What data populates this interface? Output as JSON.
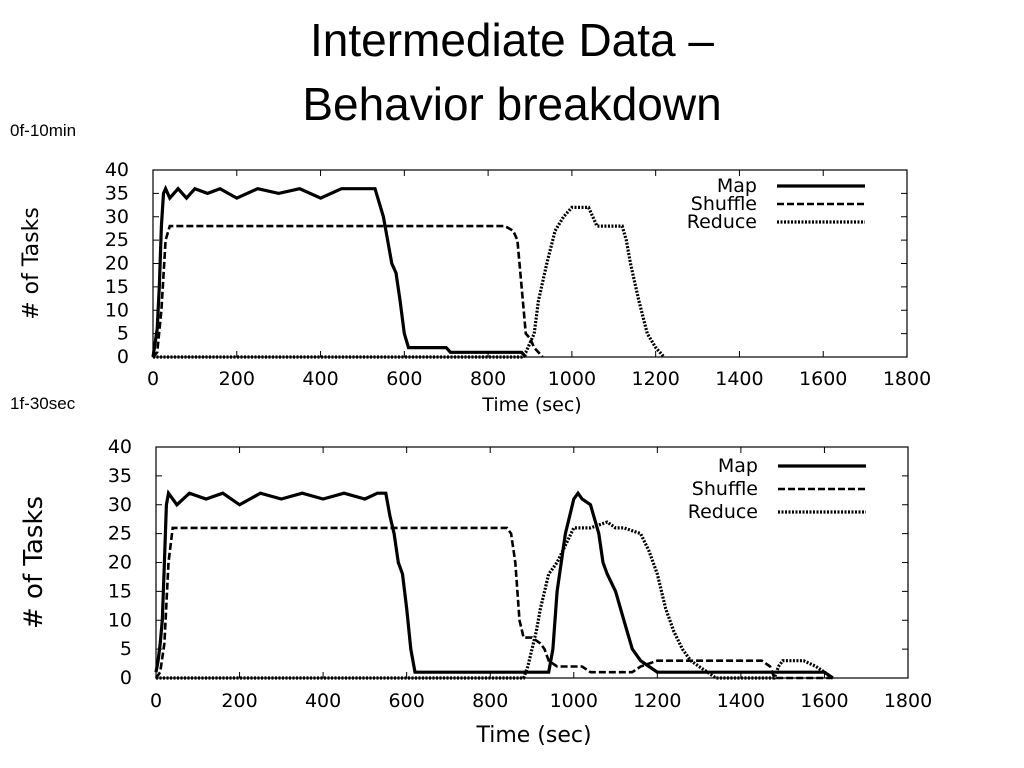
{
  "slide": {
    "title_line1": "Intermediate Data –",
    "title_line2": "Behavior breakdown"
  },
  "chart_data": [
    {
      "type": "line",
      "label": "0f-10min",
      "xlabel": "Time (sec)",
      "ylabel": "# of Tasks",
      "xlim": [
        0,
        1800
      ],
      "ylim": [
        0,
        40
      ],
      "xticks": [
        0,
        200,
        400,
        600,
        800,
        1000,
        1200,
        1400,
        1600,
        1800
      ],
      "yticks": [
        0,
        5,
        10,
        15,
        20,
        25,
        30,
        35,
        40
      ],
      "grid": false,
      "legend": "top-right",
      "series": [
        {
          "name": "Map",
          "style": "solid",
          "x": [
            0,
            5,
            10,
            15,
            20,
            25,
            30,
            40,
            60,
            80,
            100,
            130,
            160,
            200,
            250,
            300,
            350,
            400,
            450,
            500,
            530,
            540,
            550,
            560,
            570,
            580,
            590,
            600,
            610,
            700,
            710,
            800,
            850,
            880,
            890
          ],
          "y": [
            0,
            3,
            6,
            15,
            28,
            35,
            36,
            34,
            36,
            34,
            36,
            35,
            36,
            34,
            36,
            35,
            36,
            34,
            36,
            36,
            36,
            33,
            30,
            25,
            20,
            18,
            12,
            5,
            2,
            2,
            1,
            1,
            1,
            1,
            0
          ]
        },
        {
          "name": "Shuffle",
          "style": "dashed",
          "x": [
            0,
            10,
            20,
            30,
            40,
            100,
            300,
            500,
            700,
            840,
            860,
            870,
            880,
            890,
            900,
            910,
            920,
            930
          ],
          "y": [
            0,
            1,
            10,
            25,
            28,
            28,
            28,
            28,
            28,
            28,
            27,
            25,
            15,
            5,
            4,
            2,
            1,
            0
          ]
        },
        {
          "name": "Reduce",
          "style": "dotted",
          "x": [
            0,
            880,
            890,
            900,
            910,
            920,
            940,
            960,
            980,
            1000,
            1020,
            1040,
            1050,
            1060,
            1080,
            1100,
            1120,
            1130,
            1140,
            1160,
            1180,
            1200,
            1210,
            1220
          ],
          "y": [
            0,
            0,
            1,
            3,
            5,
            12,
            20,
            27,
            30,
            32,
            32,
            32,
            30,
            28,
            28,
            28,
            28,
            25,
            20,
            12,
            5,
            2,
            1,
            0
          ]
        }
      ]
    },
    {
      "type": "line",
      "label": "1f-30sec",
      "xlabel": "Time (sec)",
      "ylabel": "# of Tasks",
      "xlim": [
        0,
        1800
      ],
      "ylim": [
        0,
        40
      ],
      "xticks": [
        0,
        200,
        400,
        600,
        800,
        1000,
        1200,
        1400,
        1600,
        1800
      ],
      "yticks": [
        0,
        5,
        10,
        15,
        20,
        25,
        30,
        35,
        40
      ],
      "grid": false,
      "legend": "top-right",
      "series": [
        {
          "name": "Map",
          "style": "solid",
          "x": [
            0,
            5,
            10,
            15,
            20,
            25,
            30,
            50,
            80,
            120,
            160,
            200,
            250,
            300,
            350,
            400,
            450,
            500,
            530,
            550,
            560,
            570,
            580,
            590,
            600,
            610,
            620,
            700,
            800,
            900,
            930,
            940,
            950,
            960,
            980,
            1000,
            1010,
            1020,
            1040,
            1060,
            1070,
            1080,
            1100,
            1120,
            1140,
            1160,
            1180,
            1200,
            1300,
            1500,
            1600,
            1620
          ],
          "y": [
            1,
            3,
            6,
            10,
            20,
            30,
            32,
            30,
            32,
            31,
            32,
            30,
            32,
            31,
            32,
            31,
            32,
            31,
            32,
            32,
            28,
            25,
            20,
            18,
            12,
            5,
            1,
            1,
            1,
            1,
            1,
            1,
            5,
            15,
            25,
            31,
            32,
            31,
            30,
            25,
            20,
            18,
            15,
            10,
            5,
            3,
            2,
            1,
            1,
            1,
            1,
            0
          ]
        },
        {
          "name": "Shuffle",
          "style": "dashed",
          "x": [
            0,
            10,
            20,
            30,
            40,
            60,
            200,
            400,
            600,
            800,
            840,
            850,
            860,
            870,
            880,
            900,
            920,
            930,
            940,
            960,
            1000,
            1020,
            1040,
            1060,
            1100,
            1140,
            1160,
            1200,
            1300,
            1400,
            1450,
            1470,
            1480,
            1500,
            1600,
            1620
          ],
          "y": [
            0,
            1,
            6,
            20,
            26,
            26,
            26,
            26,
            26,
            26,
            26,
            25,
            20,
            10,
            7,
            7,
            6,
            5,
            3,
            2,
            2,
            2,
            1,
            1,
            1,
            1,
            2,
            3,
            3,
            3,
            3,
            2,
            0,
            0,
            0,
            0
          ]
        },
        {
          "name": "Reduce",
          "style": "dotted",
          "x": [
            0,
            880,
            890,
            900,
            910,
            920,
            940,
            960,
            980,
            1000,
            1040,
            1080,
            1100,
            1120,
            1160,
            1180,
            1200,
            1220,
            1240,
            1260,
            1280,
            1300,
            1320,
            1340,
            1400,
            1480,
            1490,
            1500,
            1550,
            1580,
            1600,
            1620
          ],
          "y": [
            0,
            0,
            2,
            5,
            8,
            12,
            18,
            20,
            23,
            26,
            26,
            27,
            26,
            26,
            25,
            22,
            18,
            12,
            8,
            5,
            3,
            2,
            1,
            0,
            0,
            0,
            2,
            3,
            3,
            2,
            1,
            0
          ]
        }
      ]
    }
  ]
}
